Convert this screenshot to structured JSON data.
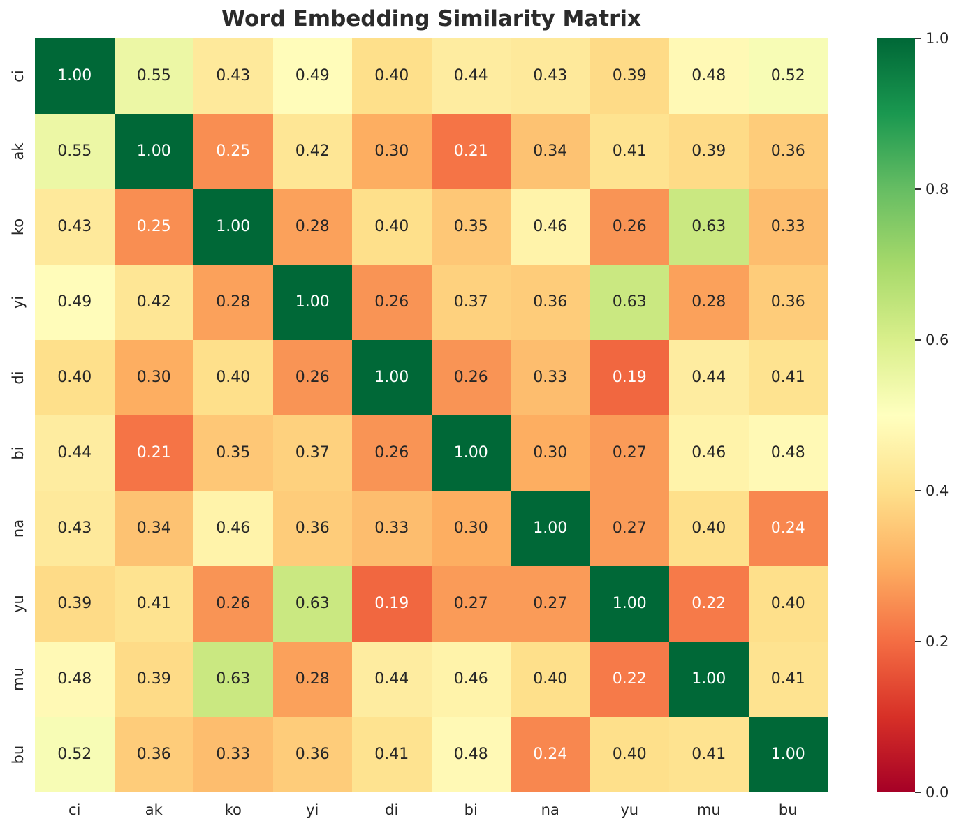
{
  "chart_data": {
    "type": "heatmap",
    "title": "Word Embedding Similarity Matrix",
    "x_labels": [
      "ci",
      "ak",
      "ko",
      "yi",
      "di",
      "bi",
      "na",
      "yu",
      "mu",
      "bu"
    ],
    "y_labels": [
      "ci",
      "ak",
      "ko",
      "yi",
      "di",
      "bi",
      "na",
      "yu",
      "mu",
      "bu"
    ],
    "values": [
      [
        1.0,
        0.55,
        0.43,
        0.49,
        0.4,
        0.44,
        0.43,
        0.39,
        0.48,
        0.52
      ],
      [
        0.55,
        1.0,
        0.25,
        0.42,
        0.3,
        0.21,
        0.34,
        0.41,
        0.39,
        0.36
      ],
      [
        0.43,
        0.25,
        1.0,
        0.28,
        0.4,
        0.35,
        0.46,
        0.26,
        0.63,
        0.33
      ],
      [
        0.49,
        0.42,
        0.28,
        1.0,
        0.26,
        0.37,
        0.36,
        0.63,
        0.28,
        0.36
      ],
      [
        0.4,
        0.3,
        0.4,
        0.26,
        1.0,
        0.26,
        0.33,
        0.19,
        0.44,
        0.41
      ],
      [
        0.44,
        0.21,
        0.35,
        0.37,
        0.26,
        1.0,
        0.3,
        0.27,
        0.46,
        0.48
      ],
      [
        0.43,
        0.34,
        0.46,
        0.36,
        0.33,
        0.3,
        1.0,
        0.27,
        0.4,
        0.24
      ],
      [
        0.39,
        0.41,
        0.26,
        0.63,
        0.19,
        0.27,
        0.27,
        1.0,
        0.22,
        0.4
      ],
      [
        0.48,
        0.39,
        0.63,
        0.28,
        0.44,
        0.46,
        0.4,
        0.22,
        1.0,
        0.41
      ],
      [
        0.52,
        0.36,
        0.33,
        0.36,
        0.41,
        0.48,
        0.24,
        0.4,
        0.41,
        1.0
      ]
    ],
    "value_decimals": 2,
    "vmin": 0.0,
    "vmax": 1.0,
    "grid": false,
    "legend_position": "right",
    "colormap": "RdYlGn",
    "colormap_anchors": [
      "#a50026",
      "#d73027",
      "#f46d43",
      "#fdae61",
      "#fee08b",
      "#ffffbf",
      "#d9ef8b",
      "#a6d96a",
      "#66bd63",
      "#1a9850",
      "#006837"
    ],
    "annotation_color_dark": "#262626",
    "annotation_color_light": "#ffffff",
    "colorbar_ticks": [
      "1.0",
      "0.8",
      "0.6",
      "0.4",
      "0.2",
      "0.0"
    ]
  }
}
